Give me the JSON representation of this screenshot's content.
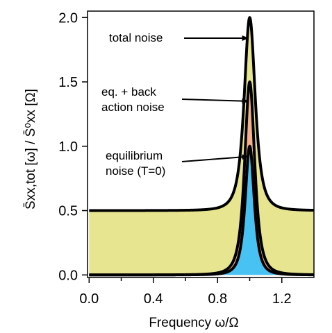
{
  "chart_data": {
    "type": "area",
    "xlabel": "Frequency ω/Ω",
    "ylabel": "S̄xx,tot [ω] / S̄⁰xx [Ω]",
    "xlim": [
      -0.01,
      1.4
    ],
    "ylim": [
      -0.02,
      2.05
    ],
    "x_ticks": [
      0.0,
      0.4,
      0.8,
      1.2
    ],
    "x_tick_labels": [
      "0.0",
      "0.4",
      "0.8",
      "1.2"
    ],
    "x_minor_ticks": [
      0.2,
      0.6,
      1.0
    ],
    "y_ticks": [
      0.0,
      0.5,
      1.0,
      1.5,
      2.0
    ],
    "y_tick_labels": [
      "0.0",
      "0.5",
      "1.0",
      "1.5",
      "2.0"
    ],
    "grid": false,
    "peak_position": 1.0,
    "series": [
      {
        "key": "total",
        "peak_value": 2.0,
        "baseline": 0.5,
        "fill_color": "#e7e58f"
      },
      {
        "key": "backaction",
        "peak_value": 1.5,
        "baseline": 0.0,
        "fill_color": "#f4b18c"
      },
      {
        "key": "equilibrium",
        "peak_value": 1.0,
        "baseline": 0.0,
        "fill_color": "#48c2f2"
      }
    ],
    "annotations": [
      {
        "lines": [
          "total noise"
        ],
        "target_x": 1.0,
        "target_y": 1.84
      },
      {
        "lines": [
          "eq. + back",
          "action noise"
        ],
        "target_x": 1.0,
        "target_y": 1.35
      },
      {
        "lines": [
          "equilibrium",
          "noise (T=0)"
        ],
        "target_x": 1.0,
        "target_y": 0.92
      }
    ]
  }
}
